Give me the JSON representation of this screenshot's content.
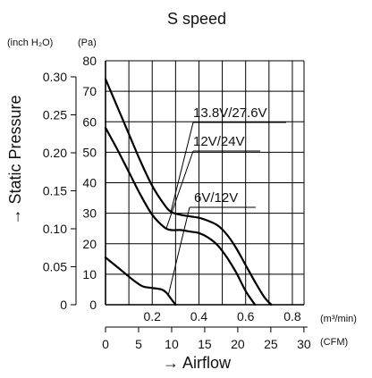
{
  "chart_data": {
    "type": "line",
    "title": "S speed",
    "ylabel": "→ Static Pressure",
    "xlabel": "→ Airflow",
    "y_units": [
      "(inch H₂O)",
      "(Pa)"
    ],
    "x_units": [
      "(m³/min)",
      "(CFM)"
    ],
    "y_pa_ticks": [
      "0",
      "10",
      "20",
      "30",
      "40",
      "50",
      "60",
      "70",
      "80"
    ],
    "y_inh2o_ticks": [
      "0",
      "0.05",
      "0.10",
      "0.15",
      "0.20",
      "0.25",
      "0.30"
    ],
    "x_m3min_ticks": [
      "0.2",
      "0.4",
      "0.6",
      "0.8"
    ],
    "x_cfm_ticks": [
      "0",
      "5",
      "10",
      "15",
      "20",
      "25",
      "30"
    ],
    "xlim_m3min": [
      0,
      0.85
    ],
    "ylim_pa": [
      0,
      80
    ],
    "grid": true,
    "series": [
      {
        "name": "13.8V/27.6V",
        "x": [
          0,
          0.05,
          0.1,
          0.15,
          0.2,
          0.25,
          0.28,
          0.32,
          0.36,
          0.4,
          0.44,
          0.48,
          0.52,
          0.56,
          0.6,
          0.64,
          0.68,
          0.71
        ],
        "y": [
          74,
          65,
          56,
          47,
          39,
          33,
          30.5,
          29.5,
          29,
          28.5,
          27.5,
          26,
          23,
          18.5,
          13,
          7.5,
          2.5,
          0
        ]
      },
      {
        "name": "12V/24V",
        "x": [
          0,
          0.05,
          0.1,
          0.15,
          0.2,
          0.25,
          0.28,
          0.32,
          0.36,
          0.4,
          0.44,
          0.48,
          0.52,
          0.56,
          0.6,
          0.64
        ],
        "y": [
          58,
          51,
          43.5,
          36,
          29.5,
          25.5,
          24.5,
          24.5,
          24,
          23.5,
          22,
          19.5,
          15.5,
          10.5,
          4.5,
          0
        ]
      },
      {
        "name": "6V/12V",
        "x": [
          0,
          0.04,
          0.08,
          0.12,
          0.16,
          0.2,
          0.24,
          0.26,
          0.28,
          0.3
        ],
        "y": [
          15.5,
          13,
          10.5,
          8,
          6,
          5.5,
          5,
          4,
          2,
          0
        ]
      }
    ]
  }
}
